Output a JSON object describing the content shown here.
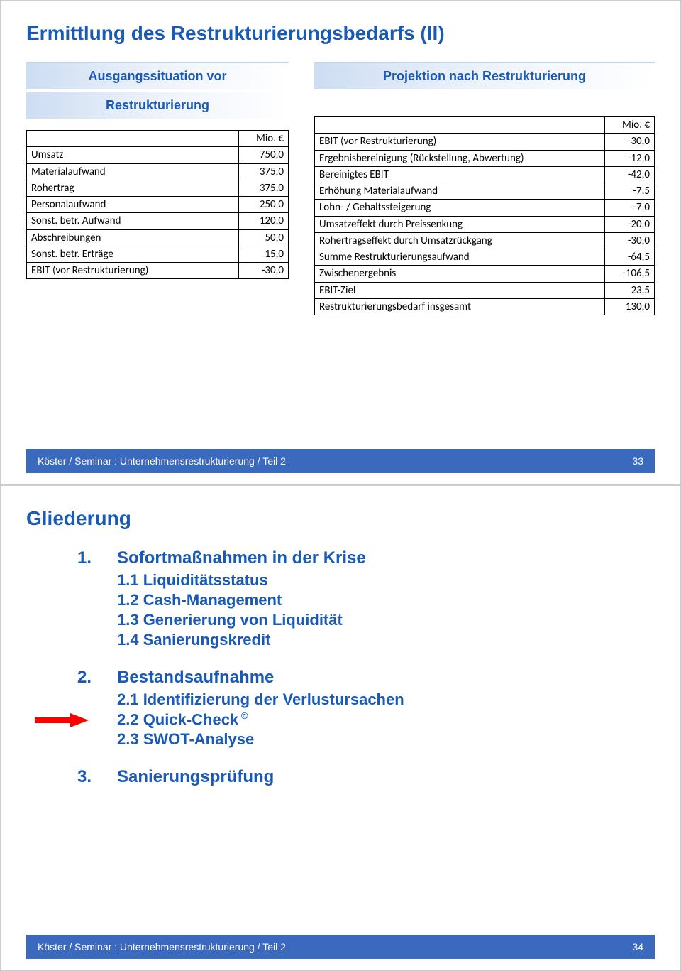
{
  "slide1": {
    "title": "Ermittlung des Restrukturierungsbedarfs  (II)",
    "left_heading_line1": "Ausgangssituation vor",
    "left_heading_line2": "Restrukturierung",
    "right_heading": "Projektion nach Restrukturierung",
    "currency_header": "Mio. €",
    "left_table": {
      "rows": [
        {
          "label": "Umsatz",
          "value": "750,0"
        },
        {
          "label": "Materialaufwand",
          "value": "375,0"
        },
        {
          "label": "Rohertrag",
          "value": "375,0"
        },
        {
          "label": "Personalaufwand",
          "value": "250,0"
        },
        {
          "label": "Sonst. betr. Aufwand",
          "value": "120,0"
        },
        {
          "label": "Abschreibungen",
          "value": "50,0"
        },
        {
          "label": "Sonst. betr. Erträge",
          "value": "15,0"
        },
        {
          "label": "EBIT  (vor Restrukturierung)",
          "value": "-30,0"
        }
      ]
    },
    "right_table": {
      "rows": [
        {
          "label": "EBIT (vor Restrukturierung)",
          "value": "-30,0"
        },
        {
          "label": "Ergebnisbereinigung (Rückstellung, Abwertung)",
          "value": "-12,0"
        },
        {
          "label": "Bereinigtes EBIT",
          "value": "-42,0"
        },
        {
          "label": "Erhöhung Materialaufwand",
          "value": "-7,5"
        },
        {
          "label": "Lohn- / Gehaltssteigerung",
          "value": "-7,0"
        },
        {
          "label": "Umsatzeffekt durch Preissenkung",
          "value": "-20,0"
        },
        {
          "label": "Rohertragseffekt durch Umsatzrückgang",
          "value": "-30,0"
        },
        {
          "label": "Summe Restrukturierungsaufwand",
          "value": "-64,5"
        },
        {
          "label": "Zwischenergebnis",
          "value": "-106,5"
        },
        {
          "label": "EBIT-Ziel",
          "value": "23,5"
        },
        {
          "label": "Restrukturierungsbedarf insgesamt",
          "value": "130,0"
        }
      ]
    },
    "footer": "Köster / Seminar : Unternehmensrestrukturierung / Teil 2",
    "page_number": "33"
  },
  "slide2": {
    "title": "Gliederung",
    "outline": [
      {
        "num": "1.",
        "text": "Sofortmaßnahmen in der Krise",
        "children": [
          {
            "label": "1.1  Liquiditätsstatus",
            "arrow": false
          },
          {
            "label": "1.2  Cash-Management",
            "arrow": false
          },
          {
            "label": "1.3  Generierung von Liquidität",
            "arrow": false
          },
          {
            "label": "1.4  Sanierungskredit",
            "arrow": false
          }
        ]
      },
      {
        "num": "2.",
        "text": "Bestandsaufnahme",
        "children": [
          {
            "label": "2.1  Identifizierung der Verlustursachen",
            "arrow": false
          },
          {
            "label": "2.2  Quick-Check",
            "sup": "©",
            "arrow": true
          },
          {
            "label": "2.3  SWOT-Analyse",
            "arrow": false
          }
        ]
      },
      {
        "num": "3.",
        "text": "Sanierungsprüfung",
        "children": []
      }
    ],
    "footer": "Köster / Seminar : Unternehmensrestrukturierung / Teil 2",
    "page_number": "34"
  },
  "colors": {
    "title_blue": "#1a5ab7",
    "footer_blue": "#3a69bd",
    "band_left": "#cdddf2",
    "arrow_red": "#ff0000"
  }
}
